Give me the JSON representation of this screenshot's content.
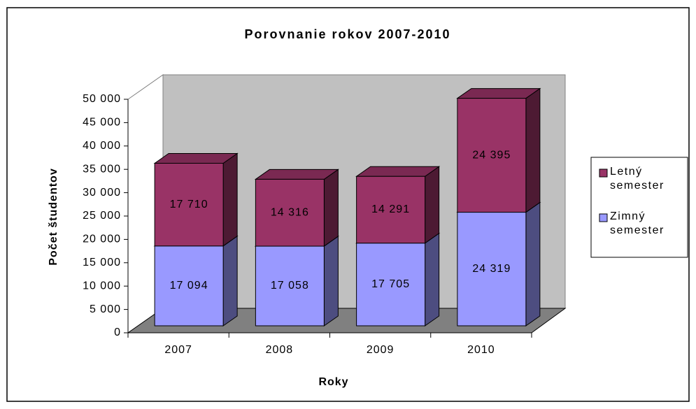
{
  "chart_data": {
    "type": "bar",
    "stacked": true,
    "title": "Porovnanie rokov 2007-2010",
    "x_label": "Roky",
    "y_label": "Počet študentov",
    "categories": [
      "2007",
      "2008",
      "2009",
      "2010"
    ],
    "series": [
      {
        "name": "Zimný semester",
        "color": "#9999ff",
        "values": [
          17094,
          17058,
          17705,
          24319
        ],
        "value_labels": [
          "17 094",
          "17 058",
          "17 705",
          "24 319"
        ]
      },
      {
        "name": "Letný semester",
        "color": "#993366",
        "values": [
          17710,
          14316,
          14291,
          24395
        ],
        "value_labels": [
          "17 710",
          "14 316",
          "14 291",
          "24 395"
        ]
      }
    ],
    "ylim": [
      0,
      50000
    ],
    "yticks": [
      0,
      {
        "value": 5000,
        "label": "5 000"
      },
      {
        "value": 10000,
        "label": "10 000"
      },
      {
        "value": 15000,
        "label": "15 000"
      },
      {
        "value": 20000,
        "label": "20 000"
      },
      {
        "value": 25000,
        "label": "25 000"
      },
      {
        "value": 30000,
        "label": "30 000"
      },
      {
        "value": 35000,
        "label": "35 000"
      },
      {
        "value": 40000,
        "label": "40 000"
      },
      {
        "value": 45000,
        "label": "45 000"
      },
      {
        "value": 50000,
        "label": "50 000"
      }
    ],
    "legend": "right",
    "grid": false
  }
}
